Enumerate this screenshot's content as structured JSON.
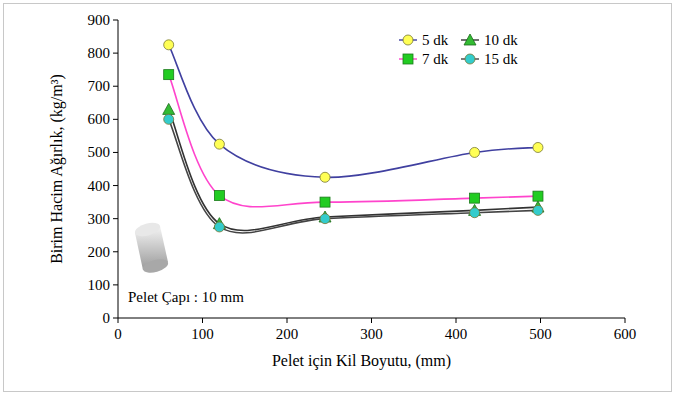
{
  "chart_data": {
    "type": "line",
    "x_label": "Pelet için Kil Boyutu, (mm)",
    "y_label": "Birim Hacim Ağırlık, (kg/m³)",
    "annotation": "Pelet Çapı : 10 mm",
    "x": [
      60,
      120,
      245,
      422,
      497
    ],
    "series": [
      {
        "name": "5 dk",
        "color": "#ffff55",
        "marker": "circle",
        "values": [
          825,
          525,
          425,
          500,
          515
        ]
      },
      {
        "name": "7 dk",
        "color": "#22cc22",
        "marker": "square",
        "values": [
          735,
          370,
          350,
          362,
          368
        ]
      },
      {
        "name": "10 dk",
        "color": "#33bb33",
        "marker": "triangle",
        "values": [
          630,
          285,
          305,
          325,
          335
        ]
      },
      {
        "name": "15 dk",
        "color": "#33cccc",
        "marker": "circle",
        "values": [
          600,
          275,
          300,
          318,
          325
        ]
      }
    ],
    "xlim": [
      0,
      600
    ],
    "xticks": [
      0,
      100,
      200,
      300,
      400,
      500,
      600
    ],
    "ylim": [
      0,
      900
    ],
    "yticks": [
      0,
      100,
      200,
      300,
      400,
      500,
      600,
      700,
      800,
      900
    ],
    "grid": false,
    "legend": "upper right"
  }
}
